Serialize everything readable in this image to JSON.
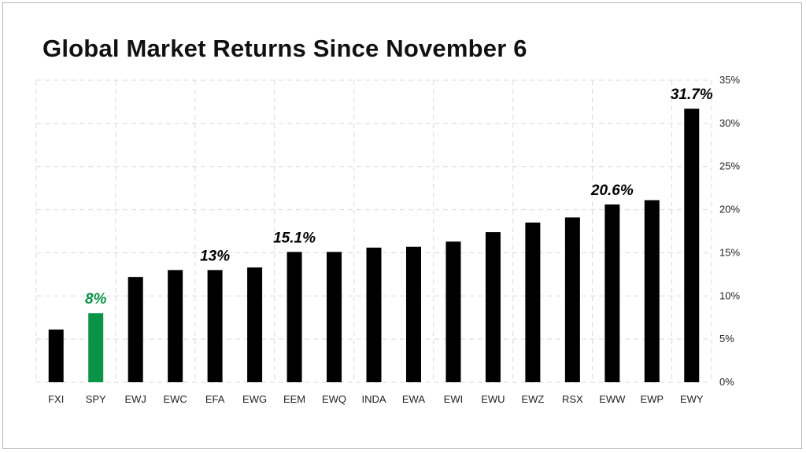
{
  "title": "Global Market Returns Since November 6",
  "colors": {
    "bar": "#000000",
    "highlight": "#0a9447",
    "grid": "#d9d9d9",
    "text": "#222222"
  },
  "chart_data": {
    "type": "bar",
    "title": "Global Market Returns Since November 6",
    "xlabel": "",
    "ylabel": "",
    "categories": [
      "FXI",
      "SPY",
      "EWJ",
      "EWC",
      "EFA",
      "EWG",
      "EEM",
      "EWQ",
      "INDA",
      "EWA",
      "EWI",
      "EWU",
      "EWZ",
      "RSX",
      "EWW",
      "EWP",
      "EWY"
    ],
    "values": [
      6.1,
      8.0,
      12.2,
      13.0,
      13.0,
      13.3,
      15.1,
      15.1,
      15.6,
      15.7,
      16.3,
      17.4,
      18.5,
      19.1,
      20.6,
      21.1,
      31.7
    ],
    "highlight_category": "SPY",
    "ylim": [
      0,
      35
    ],
    "yticks": [
      0,
      5,
      10,
      15,
      20,
      25,
      30,
      35
    ],
    "ytick_labels": [
      "0%",
      "5%",
      "10%",
      "15%",
      "20%",
      "25%",
      "30%",
      "35%"
    ],
    "y_axis_position": "right",
    "grid": true,
    "data_labels": [
      {
        "category": "SPY",
        "text": "8%"
      },
      {
        "category": "EFA",
        "text": "13%"
      },
      {
        "category": "EEM",
        "text": "15.1%"
      },
      {
        "category": "EWW",
        "text": "20.6%"
      },
      {
        "category": "EWY",
        "text": "31.7%"
      }
    ]
  }
}
